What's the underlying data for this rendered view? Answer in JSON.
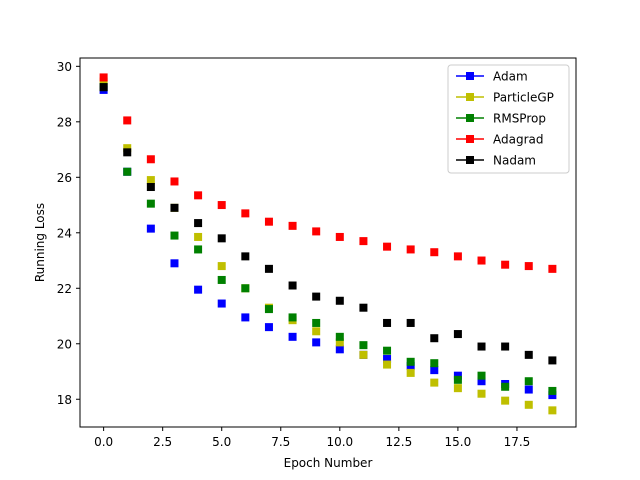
{
  "chart_data": {
    "type": "scatter",
    "title": "",
    "xlabel": "Epoch Number",
    "ylabel": "Running Loss",
    "xlim": [
      -1.0,
      20.0
    ],
    "ylim": [
      17.0,
      30.3
    ],
    "xticks": [
      0.0,
      2.5,
      5.0,
      7.5,
      10.0,
      12.5,
      15.0,
      17.5
    ],
    "xtick_labels": [
      "0.0",
      "2.5",
      "5.0",
      "7.5",
      "10.0",
      "12.5",
      "15.0",
      "17.5"
    ],
    "yticks": [
      18,
      20,
      22,
      24,
      26,
      28,
      30
    ],
    "ytick_labels": [
      "18",
      "20",
      "22",
      "24",
      "26",
      "28",
      "30"
    ],
    "grid": false,
    "legend_position": "upper right",
    "x": [
      0,
      1,
      2,
      3,
      4,
      5,
      6,
      7,
      8,
      9,
      10,
      11,
      12,
      13,
      14,
      15,
      16,
      17,
      18,
      19
    ],
    "series": [
      {
        "name": "Adam",
        "color": "#0000ff",
        "values": [
          29.15,
          26.2,
          24.15,
          22.9,
          21.95,
          21.45,
          20.95,
          20.6,
          20.25,
          20.05,
          19.8,
          19.6,
          19.45,
          19.2,
          19.05,
          18.85,
          18.65,
          18.55,
          18.35,
          18.15
        ]
      },
      {
        "name": "ParticleGP",
        "color": "#bfbf00",
        "values": [
          29.45,
          27.05,
          25.9,
          24.9,
          23.85,
          22.8,
          22.0,
          21.3,
          20.85,
          20.45,
          20.05,
          19.6,
          19.25,
          18.95,
          18.6,
          18.4,
          18.2,
          17.95,
          17.8,
          17.6
        ]
      },
      {
        "name": "RMSProp",
        "color": "#008000",
        "values": [
          29.25,
          26.2,
          25.05,
          23.9,
          23.4,
          22.3,
          22.0,
          21.25,
          20.95,
          20.75,
          20.25,
          19.95,
          19.75,
          19.35,
          19.3,
          18.7,
          18.85,
          18.45,
          18.65,
          18.3
        ]
      },
      {
        "name": "Adagrad",
        "color": "#ff0000",
        "values": [
          29.6,
          28.05,
          26.65,
          25.85,
          25.35,
          25.0,
          24.7,
          24.4,
          24.25,
          24.05,
          23.85,
          23.7,
          23.5,
          23.4,
          23.3,
          23.15,
          23.0,
          22.85,
          22.8,
          22.7
        ]
      },
      {
        "name": "Nadam",
        "color": "#000000",
        "values": [
          29.25,
          26.9,
          25.65,
          24.9,
          24.35,
          23.8,
          23.15,
          22.7,
          22.1,
          21.7,
          21.55,
          21.3,
          20.75,
          20.75,
          20.2,
          20.35,
          19.9,
          19.9,
          19.6,
          19.4
        ]
      }
    ]
  }
}
